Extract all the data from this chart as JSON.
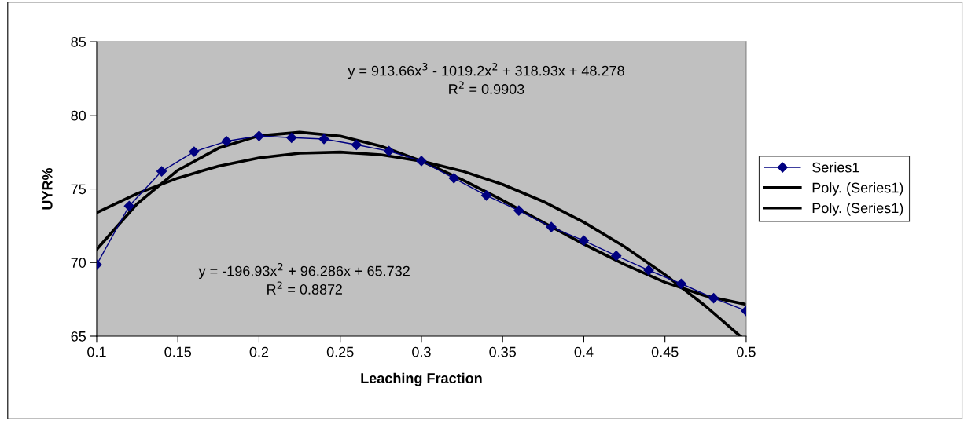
{
  "chart_data": {
    "type": "line",
    "xlabel": "Leaching Fraction",
    "ylabel": "UYR%",
    "xlim": [
      0.1,
      0.5
    ],
    "xticks": [
      0.1,
      0.15,
      0.2,
      0.25,
      0.3,
      0.35,
      0.4,
      0.45,
      0.5
    ],
    "ylim": [
      65,
      85
    ],
    "yticks": [
      65,
      70,
      75,
      80,
      85
    ],
    "grid": false,
    "legend": "right",
    "series": [
      {
        "name": "Series1",
        "color": "#000080",
        "marker": "diamond",
        "x": [
          0.1,
          0.12,
          0.14,
          0.16,
          0.18,
          0.2,
          0.22,
          0.24,
          0.26,
          0.28,
          0.3,
          0.32,
          0.34,
          0.36,
          0.38,
          0.4,
          0.42,
          0.44,
          0.46,
          0.48,
          0.5
        ],
        "values": [
          69.85,
          73.84,
          76.2,
          77.53,
          78.24,
          78.6,
          78.48,
          78.39,
          78.0,
          77.57,
          76.9,
          75.73,
          74.56,
          73.53,
          72.41,
          71.49,
          70.46,
          69.48,
          68.56,
          67.58,
          66.72
        ]
      },
      {
        "name": "Poly. (Series1)",
        "color": "#000000",
        "marker": "none",
        "x": [
          0.1,
          0.125,
          0.15,
          0.175,
          0.2,
          0.225,
          0.25,
          0.275,
          0.3,
          0.325,
          0.35,
          0.375,
          0.4,
          0.425,
          0.45,
          0.475,
          0.4964
        ],
        "values": [
          73.39,
          74.69,
          75.74,
          76.55,
          77.11,
          77.43,
          77.5,
          77.32,
          76.89,
          76.22,
          75.31,
          74.15,
          72.74,
          71.08,
          69.18,
          67.04,
          65.0
        ]
      },
      {
        "name": "Poly. (Series1)",
        "color": "#000000",
        "marker": "none",
        "x": [
          0.1,
          0.125,
          0.15,
          0.175,
          0.2,
          0.225,
          0.25,
          0.275,
          0.3,
          0.325,
          0.35,
          0.375,
          0.4,
          0.425,
          0.45,
          0.475,
          0.5
        ],
        "values": [
          70.89,
          74.0,
          76.27,
          77.77,
          78.61,
          78.85,
          78.59,
          77.91,
          76.9,
          75.64,
          74.23,
          72.73,
          71.25,
          69.87,
          68.66,
          67.73,
          67.15
        ]
      }
    ],
    "line_style": "solid",
    "annotations": [
      "y = 913.66x$^{3}$ - 1019.2x$^{2}$ + 318.93x + 48.278\nR$^{2}$ = 0.9903",
      "y = -196.93x$^{2}$ + 96.286x + 65.732\nR$^{2}$ = 0.8872"
    ]
  }
}
